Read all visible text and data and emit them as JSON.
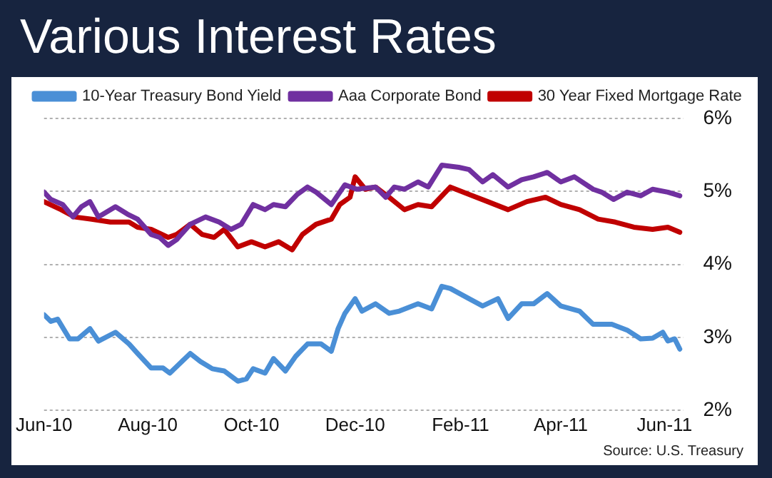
{
  "chart_data": {
    "type": "line",
    "title": "Various Interest Rates",
    "xlim": [
      "2010-06-01",
      "2011-06-12"
    ],
    "xticks": [
      {
        "value": "2010-06-01",
        "label": "Jun-10"
      },
      {
        "value": "2010-08-01",
        "label": "Aug-10"
      },
      {
        "value": "2010-10-01",
        "label": "Oct-10"
      },
      {
        "value": "2010-12-01",
        "label": "Dec-10"
      },
      {
        "value": "2011-02-01",
        "label": "Feb-11"
      },
      {
        "value": "2011-04-01",
        "label": "Apr-11"
      },
      {
        "value": "2011-06-01",
        "label": "Jun-11"
      }
    ],
    "ylim": [
      2,
      6
    ],
    "yticks": [
      {
        "value": 2,
        "label": "2%"
      },
      {
        "value": 3,
        "label": "3%"
      },
      {
        "value": 4,
        "label": "4%"
      },
      {
        "value": 5,
        "label": "5%"
      },
      {
        "value": 6,
        "label": "6%"
      }
    ],
    "grid": "y",
    "legend": "top",
    "marker": "none",
    "line_style": "solid",
    "annotations": [
      "Source: U.S. Treasury"
    ],
    "series": [
      {
        "name": "10-Year Treasury Bond Yield",
        "color": "#4a8fd6",
        "x": [
          "2010-06-01",
          "2010-06-05",
          "2010-06-09",
          "2010-06-16",
          "2010-06-21",
          "2010-06-28",
          "2010-07-03",
          "2010-07-13",
          "2010-07-21",
          "2010-07-26",
          "2010-08-03",
          "2010-08-10",
          "2010-08-14",
          "2010-08-26",
          "2010-09-01",
          "2010-09-08",
          "2010-09-15",
          "2010-09-23",
          "2010-09-28",
          "2010-10-02",
          "2010-10-09",
          "2010-10-14",
          "2010-10-21",
          "2010-10-27",
          "2010-11-03",
          "2010-11-11",
          "2010-11-17",
          "2010-11-21",
          "2010-11-25",
          "2010-12-01",
          "2010-12-05",
          "2010-12-13",
          "2010-12-21",
          "2010-12-27",
          "2011-01-07",
          "2011-01-15",
          "2011-01-21",
          "2011-01-26",
          "2011-02-06",
          "2011-02-14",
          "2011-02-23",
          "2011-03-01",
          "2011-03-09",
          "2011-03-16",
          "2011-03-24",
          "2011-04-01",
          "2011-04-12",
          "2011-04-20",
          "2011-05-01",
          "2011-05-10",
          "2011-05-18",
          "2011-05-25",
          "2011-05-31",
          "2011-06-03",
          "2011-06-07",
          "2011-06-10"
        ],
        "values": [
          3.31,
          3.22,
          3.25,
          2.98,
          2.98,
          3.12,
          2.95,
          3.07,
          2.91,
          2.78,
          2.58,
          2.58,
          2.51,
          2.78,
          2.67,
          2.57,
          2.54,
          2.4,
          2.43,
          2.57,
          2.51,
          2.71,
          2.54,
          2.74,
          2.91,
          2.91,
          2.81,
          3.12,
          3.33,
          3.53,
          3.36,
          3.46,
          3.33,
          3.36,
          3.46,
          3.39,
          3.7,
          3.67,
          3.53,
          3.43,
          3.53,
          3.26,
          3.46,
          3.46,
          3.6,
          3.43,
          3.36,
          3.18,
          3.18,
          3.1,
          2.98,
          2.99,
          3.07,
          2.95,
          2.98,
          2.84
        ]
      },
      {
        "name": "Aaa Corporate Bond",
        "color": "#7030a0",
        "x": [
          "2010-06-01",
          "2010-06-05",
          "2010-06-12",
          "2010-06-18",
          "2010-06-23",
          "2010-06-28",
          "2010-07-03",
          "2010-07-13",
          "2010-07-20",
          "2010-07-26",
          "2010-08-03",
          "2010-08-08",
          "2010-08-13",
          "2010-08-18",
          "2010-08-26",
          "2010-09-04",
          "2010-09-12",
          "2010-09-19",
          "2010-09-25",
          "2010-10-02",
          "2010-10-09",
          "2010-10-14",
          "2010-10-21",
          "2010-10-28",
          "2010-11-03",
          "2010-11-08",
          "2010-11-17",
          "2010-11-25",
          "2010-12-02",
          "2010-12-13",
          "2010-12-19",
          "2010-12-24",
          "2010-12-30",
          "2011-01-07",
          "2011-01-13",
          "2011-01-21",
          "2011-01-31",
          "2011-02-06",
          "2011-02-14",
          "2011-02-20",
          "2011-03-01",
          "2011-03-09",
          "2011-03-16",
          "2011-03-24",
          "2011-04-01",
          "2011-04-09",
          "2011-04-20",
          "2011-04-25",
          "2011-05-02",
          "2011-05-10",
          "2011-05-18",
          "2011-05-25",
          "2011-06-03",
          "2011-06-10"
        ],
        "values": [
          4.99,
          4.89,
          4.82,
          4.65,
          4.79,
          4.86,
          4.65,
          4.79,
          4.69,
          4.62,
          4.41,
          4.37,
          4.26,
          4.34,
          4.55,
          4.65,
          4.58,
          4.48,
          4.55,
          4.82,
          4.75,
          4.82,
          4.79,
          4.96,
          5.06,
          4.99,
          4.82,
          5.09,
          5.03,
          5.06,
          4.92,
          5.06,
          5.03,
          5.13,
          5.06,
          5.36,
          5.33,
          5.3,
          5.13,
          5.23,
          5.06,
          5.16,
          5.2,
          5.26,
          5.13,
          5.2,
          5.03,
          4.99,
          4.89,
          4.99,
          4.94,
          5.03,
          4.99,
          4.94
        ]
      },
      {
        "name": "30 Year Fixed Mortgage Rate",
        "color": "#c00000",
        "x": [
          "2010-06-01",
          "2010-06-11",
          "2010-06-19",
          "2010-06-29",
          "2010-07-10",
          "2010-07-21",
          "2010-07-26",
          "2010-08-03",
          "2010-08-13",
          "2010-08-18",
          "2010-08-26",
          "2010-09-02",
          "2010-09-09",
          "2010-09-15",
          "2010-09-23",
          "2010-10-01",
          "2010-10-09",
          "2010-10-17",
          "2010-10-25",
          "2010-10-31",
          "2010-11-08",
          "2010-11-17",
          "2010-11-22",
          "2010-11-28",
          "2010-12-01",
          "2010-12-07",
          "2010-12-13",
          "2010-12-21",
          "2010-12-30",
          "2011-01-07",
          "2011-01-15",
          "2011-01-26",
          "2011-02-06",
          "2011-02-17",
          "2011-03-01",
          "2011-03-12",
          "2011-03-23",
          "2011-04-01",
          "2011-04-12",
          "2011-04-23",
          "2011-05-03",
          "2011-05-14",
          "2011-05-25",
          "2011-06-03",
          "2011-06-10"
        ],
        "values": [
          4.86,
          4.75,
          4.65,
          4.62,
          4.58,
          4.58,
          4.51,
          4.48,
          4.37,
          4.41,
          4.55,
          4.41,
          4.37,
          4.48,
          4.24,
          4.31,
          4.24,
          4.31,
          4.2,
          4.41,
          4.55,
          4.62,
          4.82,
          4.92,
          5.2,
          5.03,
          5.06,
          4.92,
          4.75,
          4.82,
          4.79,
          5.06,
          4.96,
          4.86,
          4.75,
          4.86,
          4.92,
          4.82,
          4.75,
          4.62,
          4.58,
          4.51,
          4.48,
          4.51,
          4.44
        ]
      }
    ]
  }
}
